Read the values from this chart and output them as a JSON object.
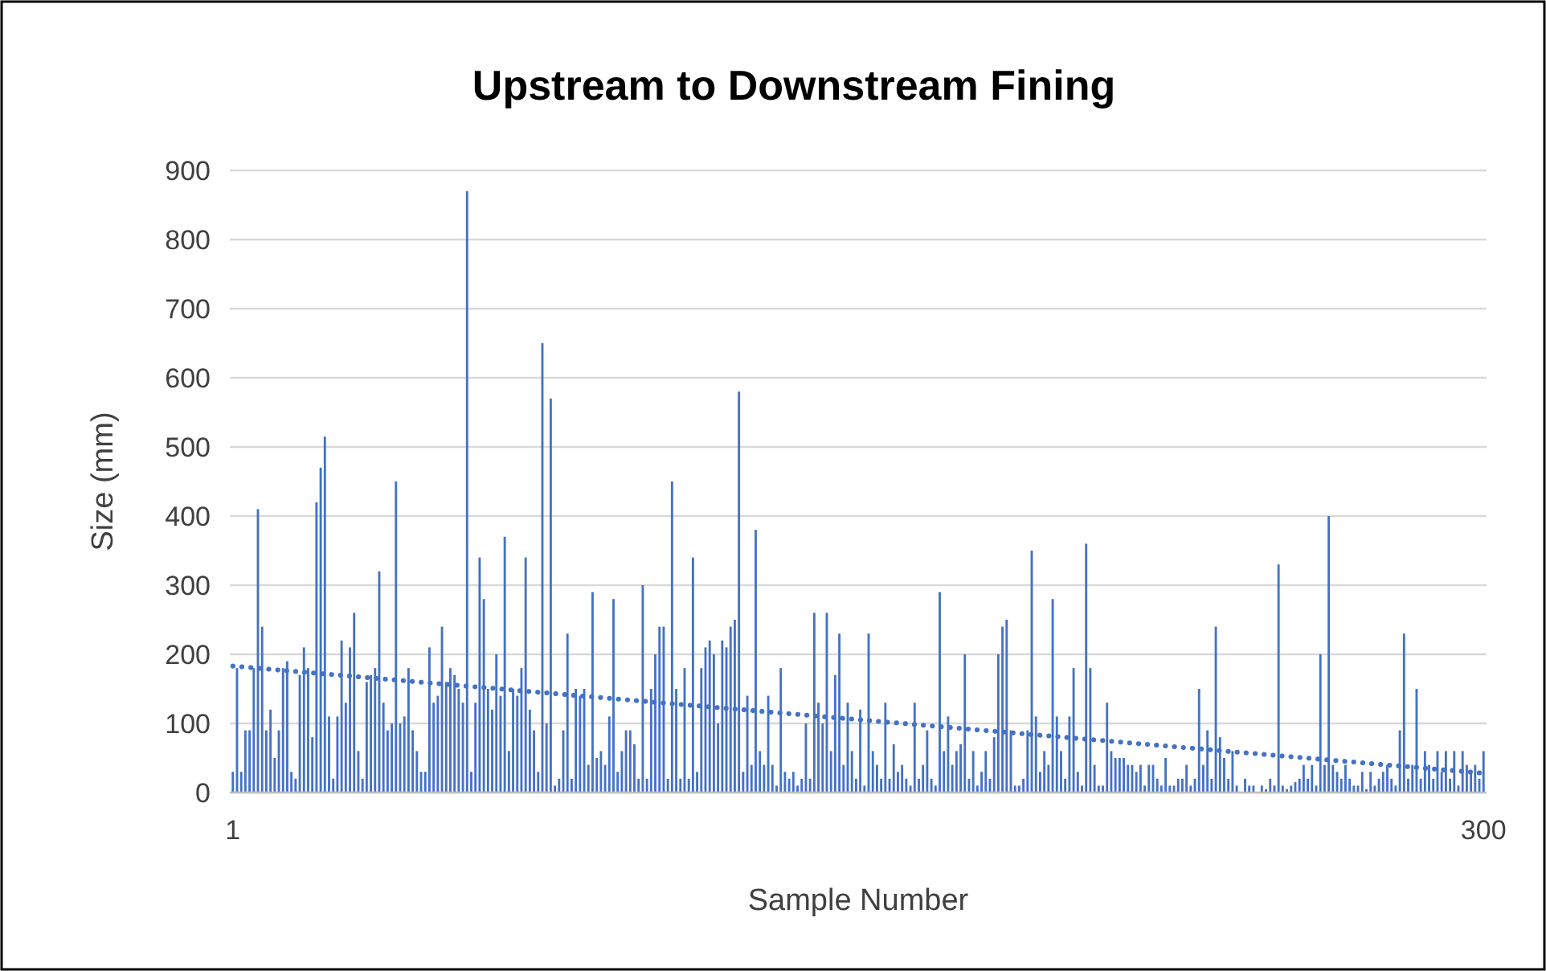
{
  "chart_data": {
    "type": "bar",
    "title": "Upstream to Downstream Fining",
    "xlabel": "Sample Number",
    "ylabel": "Size (mm)",
    "categories": [
      "1",
      null,
      null,
      null,
      null,
      null,
      null,
      null,
      null,
      null,
      null,
      null,
      null,
      null,
      null,
      null,
      null,
      null,
      null,
      null,
      null,
      null,
      null,
      null,
      null,
      null,
      null,
      null,
      null,
      null,
      null,
      null,
      null,
      null,
      null,
      null,
      null,
      null,
      null,
      null,
      null,
      null,
      null,
      null,
      null,
      null,
      null,
      null,
      null,
      null,
      null,
      null,
      null,
      null,
      null,
      null,
      null,
      null,
      null,
      null,
      null,
      null,
      null,
      null,
      null,
      null,
      null,
      null,
      null,
      null,
      null,
      null,
      null,
      null,
      null,
      null,
      null,
      null,
      null,
      null,
      null,
      null,
      null,
      null,
      null,
      null,
      null,
      null,
      null,
      null,
      null,
      null,
      null,
      null,
      null,
      null,
      null,
      null,
      null,
      null,
      null,
      null,
      null,
      null,
      null,
      null,
      null,
      null,
      null,
      null,
      null,
      null,
      null,
      null,
      null,
      null,
      null,
      null,
      null,
      null,
      null,
      null,
      null,
      null,
      null,
      null,
      null,
      null,
      null,
      null,
      null,
      null,
      null,
      null,
      null,
      null,
      null,
      null,
      null,
      null,
      null,
      null,
      null,
      null,
      null,
      null,
      null,
      null,
      null,
      null,
      null,
      null,
      null,
      null,
      null,
      null,
      null,
      null,
      null,
      null,
      null,
      null,
      null,
      null,
      null,
      null,
      null,
      null,
      null,
      null,
      null,
      null,
      null,
      null,
      null,
      null,
      null,
      null,
      null,
      null,
      null,
      null,
      null,
      null,
      null,
      null,
      null,
      null,
      null,
      null,
      null,
      null,
      null,
      null,
      null,
      null,
      null,
      null,
      null,
      null,
      null,
      null,
      null,
      null,
      null,
      null,
      null,
      null,
      null,
      null,
      null,
      null,
      null,
      null,
      null,
      null,
      null,
      null,
      null,
      null,
      null,
      null,
      null,
      null,
      null,
      null,
      null,
      null,
      null,
      null,
      null,
      null,
      null,
      null,
      null,
      null,
      null,
      null,
      null,
      null,
      null,
      null,
      null,
      null,
      null,
      null,
      null,
      null,
      null,
      null,
      null,
      null,
      null,
      null,
      null,
      null,
      null,
      null,
      null,
      null,
      null,
      null,
      null,
      null,
      null,
      null,
      null,
      null,
      null,
      null,
      null,
      null,
      null,
      null,
      null,
      null,
      null,
      null,
      null,
      null,
      null,
      null,
      null,
      null,
      null,
      null,
      null,
      null,
      null,
      null,
      null,
      null,
      null,
      null,
      null,
      null,
      null,
      null,
      null,
      "300"
    ],
    "series": [
      {
        "color": "#4472c4",
        "values": [
          30,
          180,
          30,
          90,
          90,
          180,
          410,
          240,
          90,
          120,
          50,
          90,
          180,
          190,
          30,
          20,
          170,
          210,
          180,
          80,
          420,
          470,
          515,
          110,
          20,
          110,
          220,
          130,
          210,
          260,
          60,
          20,
          160,
          170,
          180,
          320,
          130,
          90,
          100,
          450,
          100,
          110,
          180,
          90,
          60,
          30,
          30,
          210,
          130,
          140,
          240,
          160,
          180,
          170,
          150,
          130,
          870,
          30,
          130,
          340,
          280,
          150,
          120,
          200,
          140,
          370,
          60,
          150,
          140,
          180,
          340,
          120,
          90,
          30,
          650,
          100,
          570,
          10,
          20,
          90,
          230,
          20,
          150,
          140,
          150,
          40,
          290,
          50,
          60,
          40,
          110,
          280,
          30,
          60,
          90,
          90,
          70,
          20,
          300,
          20,
          150,
          200,
          240,
          240,
          20,
          450,
          150,
          20,
          180,
          20,
          340,
          30,
          180,
          210,
          220,
          200,
          100,
          220,
          210,
          240,
          250,
          580,
          30,
          140,
          40,
          380,
          60,
          40,
          140,
          40,
          10,
          180,
          30,
          20,
          30,
          10,
          20,
          100,
          20,
          260,
          130,
          100,
          260,
          60,
          170,
          230,
          40,
          130,
          60,
          20,
          120,
          10,
          230,
          60,
          40,
          20,
          130,
          20,
          70,
          30,
          40,
          20,
          10,
          130,
          20,
          40,
          90,
          20,
          10,
          290,
          60,
          110,
          40,
          60,
          70,
          200,
          20,
          60,
          10,
          30,
          60,
          20,
          80,
          200,
          240,
          250,
          90,
          10,
          10,
          20,
          90,
          350,
          110,
          30,
          60,
          40,
          280,
          110,
          60,
          20,
          110,
          180,
          30,
          10,
          360,
          180,
          40,
          10,
          10,
          130,
          60,
          50,
          50,
          50,
          40,
          40,
          30,
          40,
          10,
          40,
          40,
          20,
          10,
          50,
          10,
          10,
          20,
          20,
          40,
          10,
          20,
          150,
          40,
          90,
          20,
          240,
          80,
          50,
          20,
          60,
          10,
          0,
          20,
          10,
          10,
          0,
          10,
          5,
          20,
          10,
          330,
          10,
          5,
          10,
          15,
          20,
          40,
          20,
          40,
          10,
          200,
          40,
          400,
          40,
          30,
          20,
          40,
          20,
          10,
          10,
          30,
          5,
          30,
          10,
          20,
          30,
          40,
          20,
          10,
          90,
          230,
          20,
          40,
          150,
          20,
          60,
          40,
          20,
          60,
          30,
          60,
          20,
          60,
          10,
          60,
          40,
          30,
          40,
          20,
          60
        ]
      },
      {
        "type": "line",
        "color": "#4472c4",
        "line_style": "dotted",
        "x": [
          "1",
          "300"
        ],
        "values": [
          183,
          28
        ]
      }
    ],
    "ylim": [
      0,
      900
    ],
    "yticks": [
      0,
      100,
      200,
      300,
      400,
      500,
      600,
      700,
      800,
      900
    ],
    "grid": "y"
  }
}
